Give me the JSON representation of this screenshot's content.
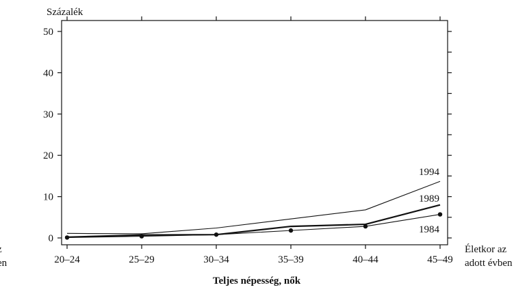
{
  "chart_data": {
    "type": "line",
    "ylabel": "Százalék",
    "xlabel_lines": [
      "Életkor az",
      "adott évben"
    ],
    "left_fragment_lines": [
      "z",
      "en"
    ],
    "subtitle": "Teljes népesség, nők",
    "categories": [
      "20–24",
      "25–29",
      "30–34",
      "35–39",
      "40–44",
      "45–49"
    ],
    "ylim": [
      0,
      50
    ],
    "yticks": [
      0,
      10,
      20,
      30,
      40,
      50
    ],
    "grid": false,
    "series": [
      {
        "name": "1994",
        "values": [
          1.1,
          1.0,
          2.4,
          4.6,
          6.8,
          13.7
        ],
        "markers": false,
        "bold": false,
        "color": "#111111"
      },
      {
        "name": "1989",
        "values": [
          0.2,
          0.7,
          0.8,
          2.8,
          3.3,
          8.0
        ],
        "markers": false,
        "bold": true,
        "color": "#111111"
      },
      {
        "name": "1984",
        "values": [
          0.1,
          0.4,
          0.8,
          1.8,
          2.8,
          5.7
        ],
        "markers": true,
        "bold": false,
        "color": "#111111"
      }
    ]
  }
}
